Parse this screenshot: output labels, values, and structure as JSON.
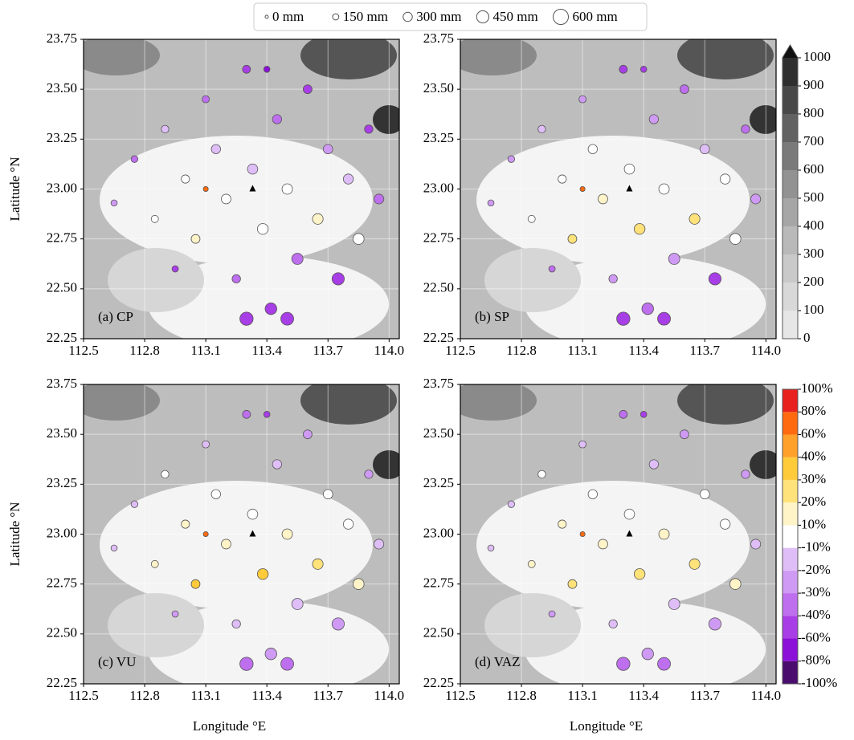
{
  "size_legend": {
    "values": [
      0,
      150,
      300,
      450,
      600
    ],
    "value_labels": [
      "0 mm",
      "150 mm",
      "300 mm",
      "450 mm",
      "600 mm"
    ]
  },
  "axes": {
    "xlim": [
      112.5,
      114.05
    ],
    "ylim": [
      22.25,
      23.75
    ],
    "xticks": [
      112.5,
      112.8,
      113.1,
      113.4,
      113.7,
      {
        "value": 114.0,
        "label": "114.0"
      }
    ],
    "yticks": [
      22.25,
      {
        "value": 22.5,
        "label": "22.50"
      },
      22.75,
      {
        "value": 23.0,
        "label": "23.00"
      },
      23.25,
      {
        "value": 23.5,
        "label": "23.50"
      },
      23.75
    ],
    "xlabel": "Longitude °E",
    "ylabel": "Latitude °N"
  },
  "stations": {
    "x": [
      112.65,
      112.75,
      112.85,
      112.9,
      112.95,
      113.0,
      113.05,
      113.1,
      113.15,
      113.2,
      113.25,
      113.3,
      113.33,
      113.38,
      113.42,
      113.45,
      113.5,
      113.55,
      113.6,
      113.65,
      113.7,
      113.75,
      113.8,
      113.85,
      113.9,
      113.95,
      113.3,
      113.5,
      113.1,
      113.4
    ],
    "y": [
      22.93,
      23.15,
      22.85,
      23.3,
      22.6,
      23.05,
      22.75,
      23.45,
      23.2,
      22.95,
      22.55,
      23.6,
      23.1,
      22.8,
      22.4,
      23.35,
      23.0,
      22.65,
      23.5,
      22.85,
      23.2,
      22.55,
      23.05,
      22.75,
      23.3,
      22.95,
      22.35,
      22.35,
      23.0,
      23.6
    ],
    "size": [
      150,
      180,
      200,
      220,
      160,
      250,
      280,
      200,
      300,
      320,
      260,
      240,
      350,
      380,
      420,
      300,
      360,
      400,
      280,
      370,
      310,
      450,
      340,
      390,
      260,
      330,
      500,
      480,
      90,
      150
    ]
  },
  "colorbar_rain": {
    "ticks": [
      0,
      100,
      200,
      300,
      400,
      500,
      600,
      700,
      800,
      900,
      1000
    ],
    "colors": [
      "#e6e6e6",
      "#d8d8d8",
      "#c9c9c9",
      "#b9b9b9",
      "#a6a6a6",
      "#929292",
      "#7a7a7a",
      "#626262",
      "#494949",
      "#2f2f2f",
      "#111111"
    ]
  },
  "colorbar_bias": {
    "ticks": [
      {
        "value": -100,
        "label": "-100%"
      },
      {
        "value": -80,
        "label": "-80%"
      },
      {
        "value": -60,
        "label": "-60%"
      },
      {
        "value": -40,
        "label": "-40%"
      },
      {
        "value": -30,
        "label": "-30%"
      },
      {
        "value": -20,
        "label": "-20%"
      },
      {
        "value": -10,
        "label": "-10%"
      },
      {
        "value": 10,
        "label": "10%"
      },
      {
        "value": 20,
        "label": "20%"
      },
      {
        "value": 30,
        "label": "30%"
      },
      {
        "value": 40,
        "label": "40%"
      },
      {
        "value": 60,
        "label": "60%"
      },
      {
        "value": 80,
        "label": "80%"
      },
      {
        "value": 100,
        "label": "100%"
      }
    ],
    "colors": [
      "#4a0d6e",
      "#8b10d8",
      "#a83ee6",
      "#bd6fee",
      "#cf9af3",
      "#dfbef7",
      "#ffffff",
      "#fff3c8",
      "#ffe27a",
      "#ffcb3a",
      "#ffa02a",
      "#ff6a10",
      "#e8201e"
    ]
  },
  "chart_data": [
    {
      "type": "scatter",
      "title": "(a) CP",
      "values": [
        -25,
        -35,
        5,
        -15,
        -40,
        -5,
        15,
        -30,
        -10,
        5,
        -30,
        -45,
        -10,
        5,
        -45,
        -35,
        -5,
        -30,
        -40,
        15,
        -25,
        -50,
        -15,
        -5,
        -40,
        -35,
        -55,
        -50,
        80,
        -60
      ]
    },
    {
      "type": "scatter",
      "title": "(b) SP",
      "values": [
        -20,
        -25,
        8,
        -10,
        -35,
        5,
        25,
        -20,
        -5,
        15,
        -25,
        -40,
        -5,
        25,
        -35,
        -25,
        5,
        -20,
        -30,
        25,
        -15,
        -40,
        -5,
        5,
        -30,
        -25,
        -45,
        -40,
        70,
        -50
      ]
    },
    {
      "type": "scatter",
      "title": "(c) VU",
      "values": [
        -15,
        -10,
        15,
        5,
        -25,
        15,
        35,
        -10,
        5,
        20,
        -15,
        -30,
        5,
        35,
        -20,
        -15,
        15,
        -10,
        -20,
        30,
        -5,
        -25,
        5,
        15,
        -20,
        -15,
        -35,
        -30,
        80,
        -40
      ]
    },
    {
      "type": "scatter",
      "title": "(d) VAZ",
      "values": [
        -15,
        -15,
        12,
        5,
        -25,
        12,
        30,
        -10,
        5,
        18,
        -15,
        -30,
        5,
        30,
        -25,
        -15,
        12,
        -10,
        -20,
        28,
        -5,
        -25,
        5,
        12,
        -20,
        -15,
        -35,
        -30,
        75,
        -40
      ]
    }
  ]
}
